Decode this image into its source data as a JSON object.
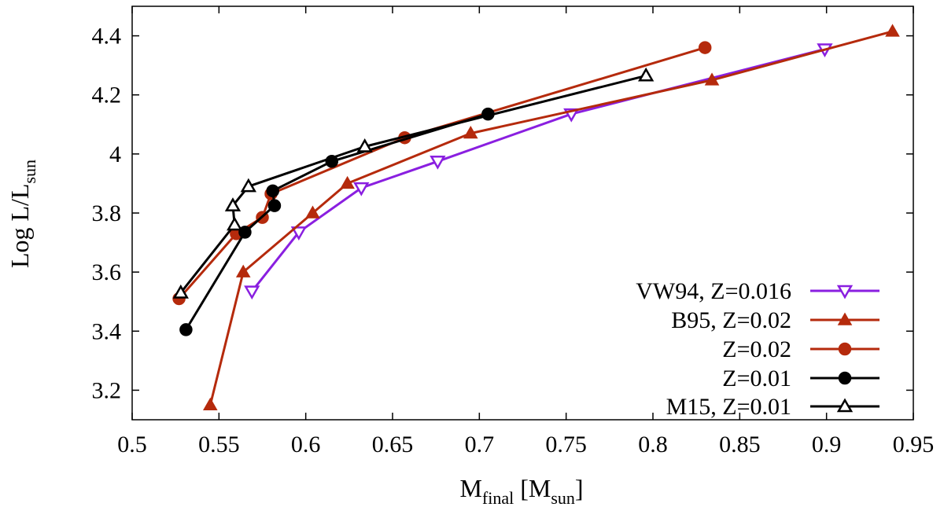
{
  "chart_data": {
    "type": "line",
    "xlabel": {
      "main": "M",
      "sub": "final",
      "tail1": " [M",
      "sub2": "sun",
      "tail2": "]"
    },
    "ylabel": {
      "main": "Log L/L",
      "sub": "sun"
    },
    "xlim": [
      0.5,
      0.95
    ],
    "ylim": [
      3.1,
      4.5
    ],
    "xticks": [
      0.5,
      0.55,
      0.6,
      0.65,
      0.7,
      0.75,
      0.8,
      0.85,
      0.9,
      0.95
    ],
    "xtick_labels": [
      "0.5",
      "0.55",
      "0.6",
      "0.65",
      "0.7",
      "0.75",
      "0.8",
      "0.85",
      "0.9",
      "0.95"
    ],
    "yticks": [
      3.2,
      3.4,
      3.6,
      3.8,
      4.0,
      4.2,
      4.4
    ],
    "ytick_labels": [
      "3.2",
      "3.4",
      "3.6",
      "3.8",
      "4",
      "4.2",
      "4.4"
    ],
    "grid": false,
    "legend_position": "bottom-right",
    "series": [
      {
        "name": "VW94, Z=0.016",
        "color": "#8a1fe0",
        "marker": "triangle-down-open",
        "x": [
          0.569,
          0.596,
          0.632,
          0.676,
          0.753,
          0.899
        ],
        "y": [
          3.535,
          3.735,
          3.885,
          3.975,
          4.135,
          4.355
        ]
      },
      {
        "name": "B95, Z=0.02",
        "color": "#b52a0c",
        "marker": "triangle-up-filled",
        "x": [
          0.545,
          0.564,
          0.604,
          0.624,
          0.695,
          0.834,
          0.938
        ],
        "y": [
          3.15,
          3.6,
          3.8,
          3.9,
          4.07,
          4.25,
          4.415
        ]
      },
      {
        "name": "Z=0.02",
        "color": "#b52a0c",
        "marker": "circle-filled",
        "x": [
          0.527,
          0.56,
          0.575,
          0.58,
          0.657,
          0.83
        ],
        "y": [
          3.51,
          3.73,
          3.785,
          3.865,
          4.055,
          4.36
        ]
      },
      {
        "name": "Z=0.01",
        "color": "#000000",
        "marker": "circle-filled",
        "x": [
          0.531,
          0.565,
          0.582,
          0.581,
          0.615,
          0.705
        ],
        "y": [
          3.405,
          3.735,
          3.825,
          3.875,
          3.975,
          4.135
        ]
      },
      {
        "name": "M15, Z=0.01",
        "color": "#000000",
        "marker": "triangle-up-open",
        "x": [
          0.528,
          0.559,
          0.558,
          0.567,
          0.634,
          0.796
        ],
        "y": [
          3.53,
          3.76,
          3.825,
          3.89,
          4.025,
          4.265
        ]
      }
    ]
  }
}
